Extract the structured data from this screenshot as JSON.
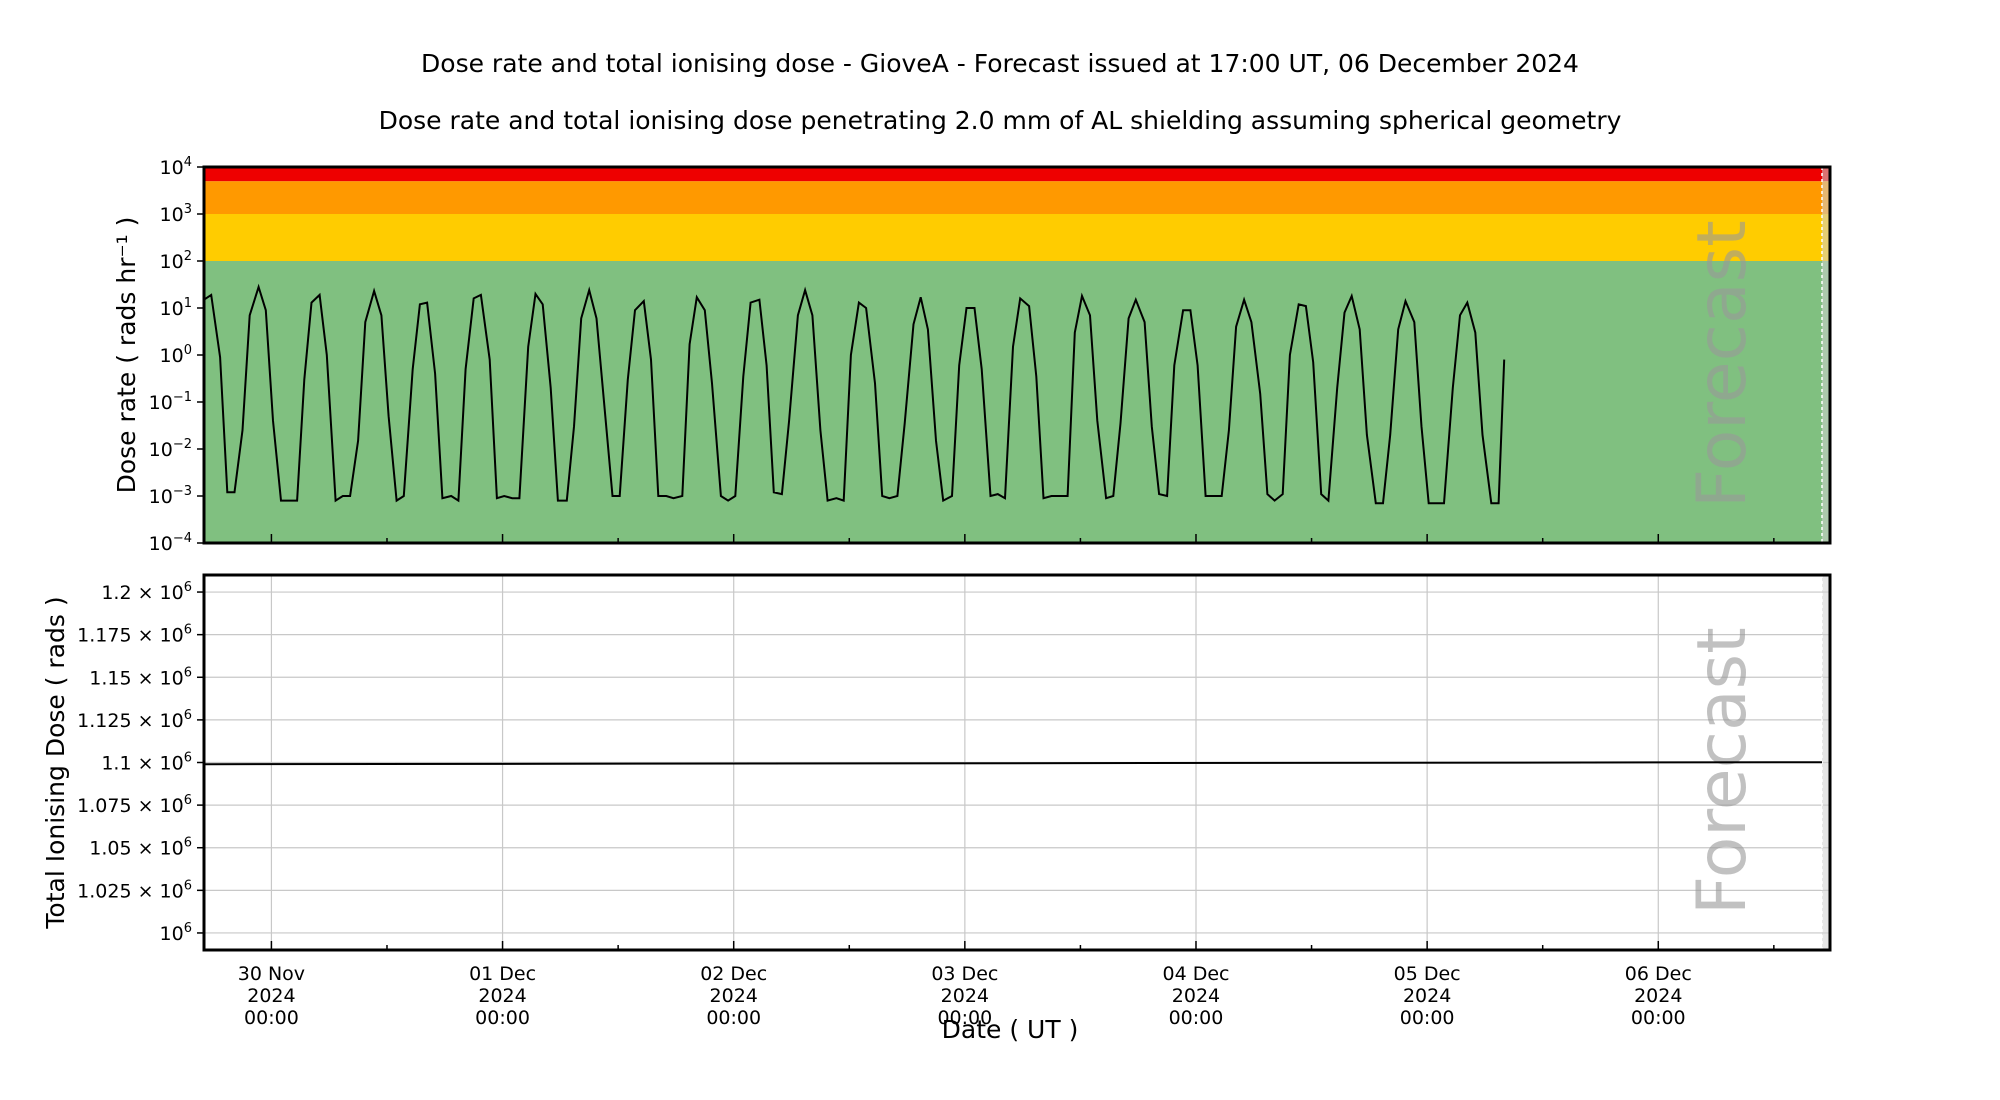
{
  "title": "Dose rate and total ionising dose - GioveA - Forecast issued at 17:00 UT, 06 December 2024",
  "subtitle": "Dose rate and total ionising dose penetrating 2.0 mm of AL shielding assuming spherical geometry",
  "xlabel": "Date ( UT )",
  "forecast_label": "Forecast",
  "colors": {
    "band_green": "#80c080",
    "band_yellow": "#ffcc00",
    "band_orange": "#ff9900",
    "band_red": "#ee0000",
    "line": "#000000",
    "grid": "#c8c8c8",
    "forecast_region": "#d0d0d0"
  },
  "x_ticks": [
    {
      "date": "30 Nov",
      "year": "2024",
      "time": "00:00"
    },
    {
      "date": "01 Dec",
      "year": "2024",
      "time": "00:00"
    },
    {
      "date": "02 Dec",
      "year": "2024",
      "time": "00:00"
    },
    {
      "date": "03 Dec",
      "year": "2024",
      "time": "00:00"
    },
    {
      "date": "04 Dec",
      "year": "2024",
      "time": "00:00"
    },
    {
      "date": "05 Dec",
      "year": "2024",
      "time": "00:00"
    },
    {
      "date": "06 Dec",
      "year": "2024",
      "time": "00:00"
    }
  ],
  "chart_data": [
    {
      "type": "line",
      "panel": "top",
      "ylabel": "Dose rate ( rads hr⁻¹ )",
      "yscale": "log",
      "ylim": [
        0.0001,
        10000
      ],
      "y_ticks": [
        {
          "base": "10",
          "exp": "4",
          "value": 10000
        },
        {
          "base": "10",
          "exp": "3",
          "value": 1000
        },
        {
          "base": "10",
          "exp": "2",
          "value": 100
        },
        {
          "base": "10",
          "exp": "1",
          "value": 10
        },
        {
          "base": "10",
          "exp": "0",
          "value": 1
        },
        {
          "base": "10",
          "exp": "−1",
          "value": 0.1
        },
        {
          "base": "10",
          "exp": "−2",
          "value": 0.01
        },
        {
          "base": "10",
          "exp": "−3",
          "value": 0.001
        },
        {
          "base": "10",
          "exp": "−4",
          "value": 0.0001
        }
      ],
      "xlim": [
        "2024-11-29T17:00",
        "2024-12-06T17:00"
      ],
      "background_bands": [
        {
          "from": 0.0001,
          "to": 100,
          "color": "#80c080"
        },
        {
          "from": 100,
          "to": 1000,
          "color": "#ffcc00"
        },
        {
          "from": 1000,
          "to": 5000,
          "color": "#ff9900"
        },
        {
          "from": 5000,
          "to": 10000,
          "color": "#ee0000"
        }
      ],
      "series": [
        {
          "values": [
            [
              "2024-11-29T17:00",
              15
            ],
            [
              "2024-11-29T17:45",
              19
            ],
            [
              "2024-11-29T18:40",
              0.9
            ],
            [
              "2024-11-29T19:25",
              0.0012
            ],
            [
              "2024-11-29T20:10",
              0.0012
            ],
            [
              "2024-11-29T21:00",
              0.025
            ],
            [
              "2024-11-29T21:45",
              7
            ],
            [
              "2024-11-29T22:40",
              28
            ],
            [
              "2024-11-29T23:25",
              9
            ],
            [
              "2024-11-30T00:10",
              0.04
            ],
            [
              "2024-11-30T01:00",
              0.0008
            ],
            [
              "2024-11-30T01:45",
              0.0008
            ],
            [
              "2024-11-30T02:40",
              0.0008
            ],
            [
              "2024-11-30T03:25",
              0.3
            ],
            [
              "2024-11-30T04:10",
              13
            ],
            [
              "2024-11-30T05:00",
              19
            ],
            [
              "2024-11-30T05:45",
              1
            ],
            [
              "2024-11-30T06:40",
              0.0008
            ],
            [
              "2024-11-30T07:25",
              0.001
            ],
            [
              "2024-11-30T08:10",
              0.001
            ],
            [
              "2024-11-30T09:00",
              0.015
            ],
            [
              "2024-11-30T09:45",
              5
            ],
            [
              "2024-11-30T10:40",
              23
            ],
            [
              "2024-11-30T11:25",
              7
            ],
            [
              "2024-11-30T12:10",
              0.05
            ],
            [
              "2024-11-30T13:00",
              0.0008
            ],
            [
              "2024-11-30T13:45",
              0.001
            ],
            [
              "2024-11-30T14:40",
              0.5
            ],
            [
              "2024-11-30T15:25",
              12
            ],
            [
              "2024-11-30T16:10",
              13
            ],
            [
              "2024-11-30T17:00",
              0.4
            ],
            [
              "2024-11-30T17:45",
              0.0009
            ],
            [
              "2024-11-30T18:40",
              0.001
            ],
            [
              "2024-11-30T19:25",
              0.0008
            ],
            [
              "2024-11-30T20:10",
              0.5
            ],
            [
              "2024-11-30T21:00",
              16
            ],
            [
              "2024-11-30T21:45",
              19
            ],
            [
              "2024-11-30T22:40",
              0.8
            ],
            [
              "2024-11-30T23:25",
              0.0009
            ],
            [
              "2024-12-01T00:10",
              0.001
            ],
            [
              "2024-12-01T01:00",
              0.0009
            ],
            [
              "2024-12-01T01:45",
              0.0009
            ],
            [
              "2024-12-01T02:40",
              1.5
            ],
            [
              "2024-12-01T03:25",
              20
            ],
            [
              "2024-12-01T04:10",
              12
            ],
            [
              "2024-12-01T05:00",
              0.2
            ],
            [
              "2024-12-01T05:45",
              0.0008
            ],
            [
              "2024-12-01T06:40",
              0.0008
            ],
            [
              "2024-12-01T07:25",
              0.03
            ],
            [
              "2024-12-01T08:10",
              6
            ],
            [
              "2024-12-01T09:00",
              24
            ],
            [
              "2024-12-01T09:45",
              6
            ],
            [
              "2024-12-01T10:40",
              0.05
            ],
            [
              "2024-12-01T11:25",
              0.001
            ],
            [
              "2024-12-01T12:10",
              0.001
            ],
            [
              "2024-12-01T13:00",
              0.3
            ],
            [
              "2024-12-01T13:45",
              9
            ],
            [
              "2024-12-01T14:40",
              14
            ],
            [
              "2024-12-01T15:25",
              0.8
            ],
            [
              "2024-12-01T16:10",
              0.001
            ],
            [
              "2024-12-01T17:00",
              0.001
            ],
            [
              "2024-12-01T17:45",
              0.0009
            ],
            [
              "2024-12-01T18:40",
              0.001
            ],
            [
              "2024-12-01T19:25",
              1.7
            ],
            [
              "2024-12-01T20:10",
              17
            ],
            [
              "2024-12-01T21:00",
              9
            ],
            [
              "2024-12-01T21:45",
              0.25
            ],
            [
              "2024-12-01T22:40",
              0.001
            ],
            [
              "2024-12-01T23:25",
              0.0008
            ],
            [
              "2024-12-02T00:10",
              0.001
            ],
            [
              "2024-12-02T01:00",
              0.35
            ],
            [
              "2024-12-02T01:45",
              13
            ],
            [
              "2024-12-02T02:40",
              15
            ],
            [
              "2024-12-02T03:25",
              0.6
            ],
            [
              "2024-12-02T04:10",
              0.0012
            ],
            [
              "2024-12-02T05:00",
              0.0011
            ],
            [
              "2024-12-02T05:45",
              0.04
            ],
            [
              "2024-12-02T06:40",
              7
            ],
            [
              "2024-12-02T07:25",
              24
            ],
            [
              "2024-12-02T08:10",
              7
            ],
            [
              "2024-12-02T09:00",
              0.025
            ],
            [
              "2024-12-02T09:45",
              0.0008
            ],
            [
              "2024-12-02T10:40",
              0.0009
            ],
            [
              "2024-12-02T11:25",
              0.0008
            ],
            [
              "2024-12-02T12:10",
              1
            ],
            [
              "2024-12-02T13:00",
              13
            ],
            [
              "2024-12-02T13:45",
              10
            ],
            [
              "2024-12-02T14:40",
              0.25
            ],
            [
              "2024-12-02T15:25",
              0.001
            ],
            [
              "2024-12-02T16:10",
              0.0009
            ],
            [
              "2024-12-02T17:00",
              0.001
            ],
            [
              "2024-12-02T17:45",
              0.035
            ],
            [
              "2024-12-02T18:40",
              4.5
            ],
            [
              "2024-12-02T19:25",
              17
            ],
            [
              "2024-12-02T20:10",
              3.5
            ],
            [
              "2024-12-02T21:00",
              0.015
            ],
            [
              "2024-12-02T21:45",
              0.0008
            ],
            [
              "2024-12-02T22:40",
              0.001
            ],
            [
              "2024-12-02T23:25",
              0.6
            ],
            [
              "2024-12-03T00:10",
              10
            ],
            [
              "2024-12-03T01:00",
              10
            ],
            [
              "2024-12-03T01:45",
              0.5
            ],
            [
              "2024-12-03T02:40",
              0.001
            ],
            [
              "2024-12-03T03:25",
              0.0011
            ],
            [
              "2024-12-03T04:10",
              0.0009
            ],
            [
              "2024-12-03T05:00",
              1.5
            ],
            [
              "2024-12-03T05:45",
              16
            ],
            [
              "2024-12-03T06:40",
              11
            ],
            [
              "2024-12-03T07:25",
              0.35
            ],
            [
              "2024-12-03T08:10",
              0.0009
            ],
            [
              "2024-12-03T09:00",
              0.001
            ],
            [
              "2024-12-03T09:45",
              0.001
            ],
            [
              "2024-12-03T10:40",
              0.001
            ],
            [
              "2024-12-03T11:25",
              3
            ],
            [
              "2024-12-03T12:10",
              18
            ],
            [
              "2024-12-03T13:00",
              7
            ],
            [
              "2024-12-03T13:45",
              0.04
            ],
            [
              "2024-12-03T14:40",
              0.0009
            ],
            [
              "2024-12-03T15:25",
              0.001
            ],
            [
              "2024-12-03T16:10",
              0.035
            ],
            [
              "2024-12-03T17:00",
              6
            ],
            [
              "2024-12-03T17:45",
              15
            ],
            [
              "2024-12-03T18:40",
              5
            ],
            [
              "2024-12-03T19:25",
              0.03
            ],
            [
              "2024-12-03T20:10",
              0.0011
            ],
            [
              "2024-12-03T21:00",
              0.001
            ],
            [
              "2024-12-03T21:45",
              0.6
            ],
            [
              "2024-12-03T22:40",
              9
            ],
            [
              "2024-12-03T23:25",
              9
            ],
            [
              "2024-12-04T00:10",
              0.6
            ],
            [
              "2024-12-04T01:00",
              0.001
            ],
            [
              "2024-12-04T01:45",
              0.001
            ],
            [
              "2024-12-04T02:40",
              0.001
            ],
            [
              "2024-12-04T03:25",
              0.025
            ],
            [
              "2024-12-04T04:10",
              4
            ],
            [
              "2024-12-04T05:00",
              15
            ],
            [
              "2024-12-04T05:45",
              5
            ],
            [
              "2024-12-04T06:40",
              0.15
            ],
            [
              "2024-12-04T07:25",
              0.0011
            ],
            [
              "2024-12-04T08:10",
              0.0008
            ],
            [
              "2024-12-04T09:00",
              0.0011
            ],
            [
              "2024-12-04T09:45",
              1
            ],
            [
              "2024-12-04T10:40",
              12
            ],
            [
              "2024-12-04T11:25",
              11
            ],
            [
              "2024-12-04T12:10",
              0.7
            ],
            [
              "2024-12-04T13:00",
              0.0011
            ],
            [
              "2024-12-04T13:45",
              0.0008
            ],
            [
              "2024-12-04T14:40",
              0.2
            ],
            [
              "2024-12-04T15:25",
              8
            ],
            [
              "2024-12-04T16:10",
              18
            ],
            [
              "2024-12-04T17:00",
              3.5
            ],
            [
              "2024-12-04T17:45",
              0.02
            ],
            [
              "2024-12-04T18:40",
              0.0007
            ],
            [
              "2024-12-04T19:25",
              0.0007
            ],
            [
              "2024-12-04T20:10",
              0.02
            ],
            [
              "2024-12-04T21:00",
              3.5
            ],
            [
              "2024-12-04T21:45",
              14
            ],
            [
              "2024-12-04T22:40",
              5
            ],
            [
              "2024-12-04T23:25",
              0.03
            ],
            [
              "2024-12-05T00:10",
              0.0007
            ],
            [
              "2024-12-05T01:00",
              0.0007
            ],
            [
              "2024-12-05T01:45",
              0.0007
            ],
            [
              "2024-12-05T02:40",
              0.2
            ],
            [
              "2024-12-05T03:25",
              7
            ],
            [
              "2024-12-05T04:10",
              13
            ],
            [
              "2024-12-05T05:00",
              3
            ],
            [
              "2024-12-05T05:45",
              0.02
            ],
            [
              "2024-12-05T06:40",
              0.0007
            ],
            [
              "2024-12-05T07:25",
              0.0007
            ],
            [
              "2024-12-05T08:00",
              0.8
            ]
          ]
        }
      ]
    },
    {
      "type": "line",
      "panel": "bottom",
      "ylabel": "Total Ionising Dose ( rads )",
      "ylim": [
        990000,
        1210000
      ],
      "y_ticks": [
        {
          "mant": "1.2",
          "value": 1200000
        },
        {
          "mant": "1.175",
          "value": 1175000
        },
        {
          "mant": "1.15",
          "value": 1150000
        },
        {
          "mant": "1.125",
          "value": 1125000
        },
        {
          "mant": "1.1",
          "value": 1100000
        },
        {
          "mant": "1.075",
          "value": 1075000
        },
        {
          "mant": "1.05",
          "value": 1050000
        },
        {
          "mant": "1.025",
          "value": 1025000
        },
        {
          "mant": "",
          "value": 1000000
        }
      ],
      "tick_suffix": "10",
      "tick_exp": "6",
      "grid": true,
      "series": [
        {
          "values": [
            [
              "2024-11-29T17:00",
              1099000
            ],
            [
              "2024-12-06T17:00",
              1100200
            ]
          ]
        }
      ]
    }
  ]
}
